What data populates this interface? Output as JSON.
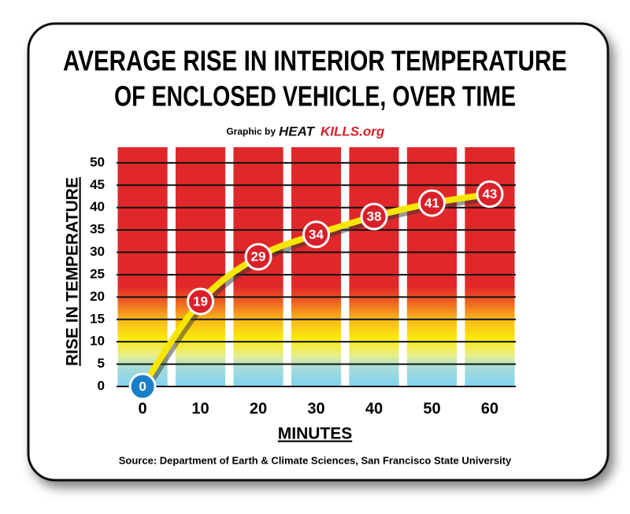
{
  "chart_data": {
    "type": "line",
    "title": [
      "AVERAGE RISE IN INTERIOR TEMPERATURE",
      "OF ENCLOSED VEHICLE, OVER TIME"
    ],
    "credit": {
      "prefix": "Graphic by",
      "brand": [
        "HEAT",
        "KILLS.org"
      ]
    },
    "x_label": "MINUTES",
    "y_label": "RISE IN TEMPERATURE",
    "source": "Source: Department of Earth & Climate Sciences, San Francisco State University",
    "x": [
      0,
      10,
      20,
      30,
      40,
      50,
      60
    ],
    "series": [
      {
        "values": [
          0,
          19,
          29,
          34,
          38,
          41,
          43
        ],
        "color": "#f7e600",
        "marker_colors": [
          "#1a7fc9",
          "#d9202a",
          "#d9202a",
          "#d9202a",
          "#d9202a",
          "#d9202a",
          "#d9202a"
        ]
      }
    ],
    "xlim": [
      -4.5,
      64.5
    ],
    "xticks": [
      0,
      10,
      20,
      30,
      40,
      50,
      60
    ],
    "ylim": [
      0,
      53.5
    ],
    "yticks": [
      0,
      5,
      10,
      15,
      20,
      25,
      30,
      35,
      40,
      45,
      50
    ],
    "grid": true
  }
}
